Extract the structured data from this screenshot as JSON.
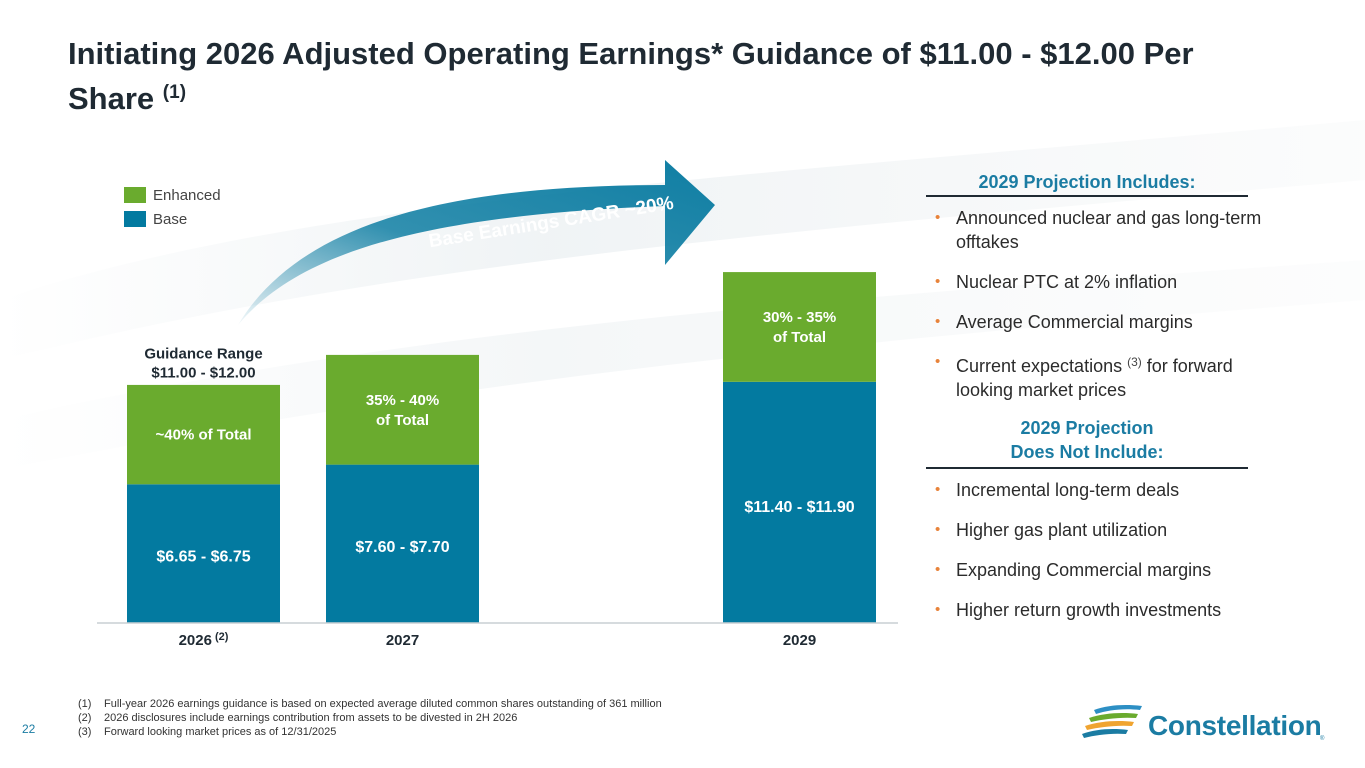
{
  "title": {
    "text": "Initiating 2026 Adjusted Operating Earnings* Guidance of $11.00 - $12.00 Per Share",
    "note": "(1)"
  },
  "colors": {
    "enhanced": "#6aab2e",
    "base": "#037aa0",
    "arrow": "#0f7ea3",
    "accent": "#1b7ca3",
    "bullet": "#e8833a"
  },
  "legend": {
    "enhanced_label": "Enhanced",
    "base_label": "Base"
  },
  "arrow_label": "Base Earnings CAGR ~20%",
  "guidance_label": {
    "line1": "Guidance Range",
    "line2": "$11.00 - $12.00"
  },
  "chart_data": {
    "type": "bar",
    "stacked": true,
    "title": "Initiating 2026 Adjusted Operating Earnings* Guidance of $11.00 - $12.00 Per Share (1)",
    "categories": [
      "2026",
      "2027",
      "2029"
    ],
    "category_notes": [
      "(2)",
      "",
      ""
    ],
    "series": [
      {
        "name": "Base",
        "values": [
          6.7,
          7.65,
          11.65
        ],
        "labels": [
          "$6.65 - $6.75",
          "$7.60 - $7.70",
          "$11.40 - $11.90"
        ]
      },
      {
        "name": "Enhanced",
        "values": [
          4.8,
          5.3,
          5.3
        ],
        "labels": [
          [
            "~40% of Total"
          ],
          [
            "35% - 40%",
            "of Total"
          ],
          [
            "30% - 35%",
            "of Total"
          ]
        ]
      }
    ],
    "annotations": [
      "Guidance Range $11.00 - $12.00",
      "Base Earnings CAGR ~20%"
    ],
    "ylim": [
      0,
      18.5
    ],
    "xlabel": "",
    "ylabel": "",
    "legend": "top-left",
    "grid": false
  },
  "includes": {
    "heading": "2029 Projection Includes:",
    "items": [
      {
        "text": "Announced nuclear and gas long-term offtakes"
      },
      {
        "text": "Nuclear PTC at 2% inflation"
      },
      {
        "text": "Average Commercial margins"
      },
      {
        "pre": "Current expectations ",
        "sup": "(3)",
        "post": " for forward looking market prices"
      }
    ]
  },
  "excludes": {
    "heading_line1": "2029 Projection",
    "heading_line2": "Does Not Include:",
    "items": [
      "Incremental long-term deals",
      "Higher gas plant utilization",
      "Expanding Commercial margins",
      "Higher return growth investments"
    ]
  },
  "footnotes": [
    {
      "num": "(1)",
      "text": "Full-year 2026 earnings guidance is based on expected average diluted common shares outstanding of 361 million"
    },
    {
      "num": "(2)",
      "text": "2026 disclosures include earnings contribution from assets to be divested in 2H 2026"
    },
    {
      "num": "(3)",
      "text": "Forward looking market prices as of 12/31/2025"
    }
  ],
  "page_number": "22",
  "logo": {
    "text": "Constellation",
    "reg": "®"
  }
}
